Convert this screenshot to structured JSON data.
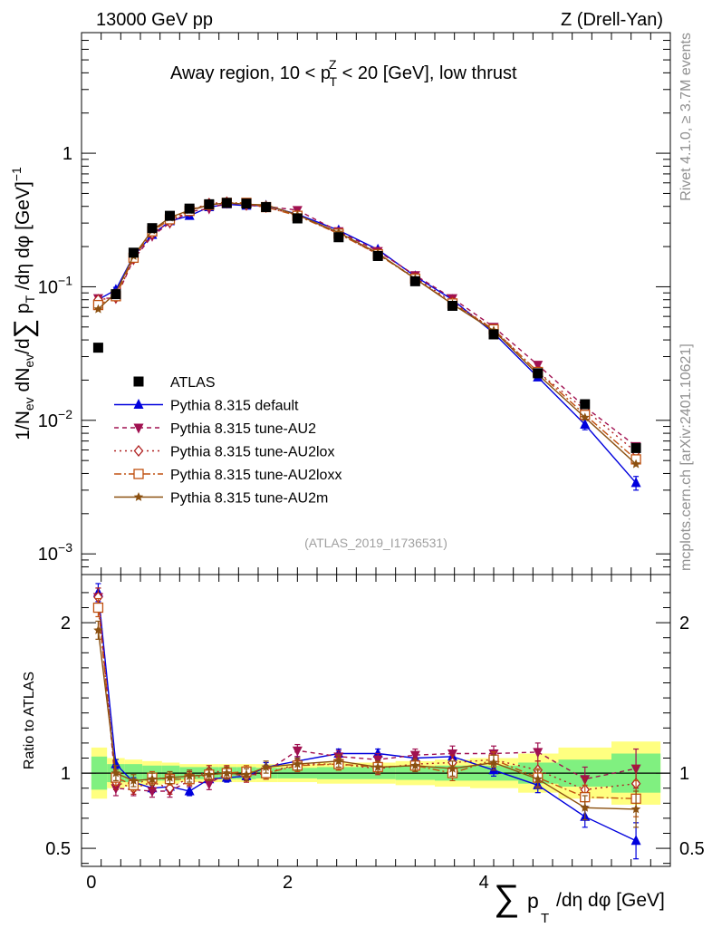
{
  "header": {
    "energy_label": "13000 GeV pp",
    "process_label": "Z (Drell-Yan)",
    "region_label_pre": "Away region, 10 < p",
    "region_label_sup": "Z",
    "region_label_sub": "T",
    "region_label_post": " < 20 [GeV], low thrust"
  },
  "side": {
    "rivet_label": "Rivet 4.1.0, ≥ 3.7M events",
    "mcplots_label": "mcplots.cern.ch [arXiv:2401.10621]"
  },
  "analysis_id": "(ATLAS_2019_I1736531)",
  "axes": {
    "ylabel_main": "1/N_ev dN_ev/d∑ p_T /dη dφ [GeV]^-1",
    "ylabel_ratio": "Ratio to ATLAS",
    "xlabel": "∑ p_T /dη dφ [GeV]",
    "xlabel_sum": "∑",
    "xlabel_p": "p",
    "xlabel_sub": "T",
    "xlabel_post": "/dη dφ [GeV]",
    "main_tick_labels": [
      {
        "label": "1",
        "exp": "",
        "value": 1
      },
      {
        "label": "10",
        "exp": "−1",
        "value": 0.1
      },
      {
        "label": "10",
        "exp": "−2",
        "value": 0.01
      },
      {
        "label": "10",
        "exp": "−3",
        "value": 0.001
      }
    ],
    "ratio_tick_labels": [
      {
        "label": "2",
        "value": 2
      },
      {
        "label": "1",
        "value": 1
      },
      {
        "label": "0.5",
        "value": 0.5
      }
    ],
    "x_tick_labels": [
      {
        "label": "0",
        "value": 0
      },
      {
        "label": "2",
        "value": 2
      },
      {
        "label": "4",
        "value": 4
      }
    ]
  },
  "legend": [
    {
      "label": "ATLAS",
      "color": "#000000",
      "marker": "square",
      "dash": ""
    },
    {
      "label": "Pythia 8.315 default",
      "color": "#0000dd",
      "marker": "triangle-up",
      "dash": ""
    },
    {
      "label": "Pythia 8.315 tune-AU2",
      "color": "#a01050",
      "marker": "triangle-down",
      "dash": "5,4"
    },
    {
      "label": "Pythia 8.315 tune-AU2lox",
      "color": "#b02020",
      "marker": "diamond-open",
      "dash": "2,4"
    },
    {
      "label": "Pythia 8.315 tune-AU2loxx",
      "color": "#c05010",
      "marker": "square-open",
      "dash": "8,3,2,3"
    },
    {
      "label": "Pythia 8.315 tune-AU2m",
      "color": "#8b5010",
      "marker": "star",
      "dash": ""
    }
  ],
  "chart_data": [
    {
      "type": "line",
      "title": "Away region, 10 < pT^Z < 20 [GeV], low thrust",
      "xlabel": "∑ pT /dη dφ [GeV]",
      "ylabel": "1/Nev dNev/d∑ pT /dη dφ [GeV]^-1",
      "yscale": "log",
      "xlim": [
        -0.1,
        5.9
      ],
      "ylim": [
        0.0007,
        8.0
      ],
      "x": [
        0.07,
        0.25,
        0.43,
        0.62,
        0.8,
        1.0,
        1.2,
        1.38,
        1.58,
        1.78,
        2.1,
        2.52,
        2.92,
        3.3,
        3.68,
        4.1,
        4.55,
        5.03,
        5.55
      ],
      "series": [
        {
          "name": "ATLAS",
          "values": [
            0.035,
            0.088,
            0.18,
            0.275,
            0.34,
            0.385,
            0.415,
            0.425,
            0.42,
            0.395,
            0.325,
            0.235,
            0.17,
            0.11,
            0.072,
            0.044,
            0.0225,
            0.0132,
            0.0062
          ]
        },
        {
          "name": "Pythia 8.315 default",
          "values": [
            0.08,
            0.095,
            0.17,
            0.245,
            0.31,
            0.34,
            0.395,
            0.415,
            0.405,
            0.405,
            0.35,
            0.265,
            0.19,
            0.12,
            0.08,
            0.045,
            0.021,
            0.0093,
            0.0034
          ],
          "errors": [
            0.004,
            0.004,
            0.005,
            0.006,
            0.007,
            0.007,
            0.008,
            0.008,
            0.008,
            0.008,
            0.007,
            0.005,
            0.004,
            0.003,
            0.002,
            0.0015,
            0.001,
            0.0008,
            0.0004
          ]
        },
        {
          "name": "Pythia 8.315 tune-AU2",
          "values": [
            0.082,
            0.082,
            0.16,
            0.24,
            0.3,
            0.365,
            0.385,
            0.425,
            0.41,
            0.4,
            0.375,
            0.26,
            0.185,
            0.122,
            0.082,
            0.05,
            0.026,
            0.0126,
            0.0064
          ]
        },
        {
          "name": "Pythia 8.315 tune-AU2lox",
          "values": [
            0.08,
            0.083,
            0.162,
            0.25,
            0.305,
            0.375,
            0.42,
            0.43,
            0.41,
            0.395,
            0.345,
            0.25,
            0.175,
            0.117,
            0.077,
            0.048,
            0.023,
            0.012,
            0.0058
          ]
        },
        {
          "name": "Pythia 8.315 tune-AU2loxx",
          "values": [
            0.073,
            0.085,
            0.165,
            0.26,
            0.32,
            0.37,
            0.41,
            0.425,
            0.425,
            0.395,
            0.34,
            0.25,
            0.175,
            0.115,
            0.075,
            0.048,
            0.023,
            0.011,
            0.0051
          ]
        },
        {
          "name": "Pythia 8.315 tune-AU2m",
          "values": [
            0.068,
            0.09,
            0.17,
            0.265,
            0.33,
            0.375,
            0.41,
            0.425,
            0.415,
            0.41,
            0.345,
            0.255,
            0.178,
            0.115,
            0.074,
            0.047,
            0.022,
            0.0105,
            0.0047
          ]
        }
      ]
    },
    {
      "type": "line",
      "title": "Ratio to ATLAS",
      "xlabel": "∑ pT /dη dφ [GeV]",
      "ylabel": "Ratio to ATLAS",
      "xlim": [
        -0.1,
        5.9
      ],
      "ylim": [
        0.38,
        2.32
      ],
      "x": [
        0.07,
        0.25,
        0.43,
        0.62,
        0.8,
        1.0,
        1.2,
        1.38,
        1.58,
        1.78,
        2.1,
        2.52,
        2.92,
        3.3,
        3.68,
        4.1,
        4.55,
        5.03,
        5.55
      ],
      "bands": {
        "bin_edges": [
          0.0,
          0.16,
          0.34,
          0.52,
          0.72,
          0.9,
          1.1,
          1.3,
          1.48,
          1.68,
          1.9,
          2.3,
          2.72,
          3.1,
          3.5,
          3.86,
          4.35,
          4.76,
          5.3,
          5.8
        ],
        "inner": [
          0.11,
          0.06,
          0.06,
          0.05,
          0.05,
          0.04,
          0.04,
          0.04,
          0.04,
          0.035,
          0.035,
          0.04,
          0.04,
          0.045,
          0.05,
          0.05,
          0.07,
          0.09,
          0.13
        ],
        "outer": [
          0.17,
          0.1,
          0.09,
          0.08,
          0.07,
          0.06,
          0.06,
          0.06,
          0.06,
          0.06,
          0.06,
          0.07,
          0.07,
          0.08,
          0.09,
          0.1,
          0.13,
          0.17,
          0.21
        ]
      },
      "series": [
        {
          "name": "Pythia 8.315 default",
          "values": [
            2.2,
            1.06,
            0.94,
            0.9,
            0.91,
            0.88,
            0.96,
            0.97,
            0.98,
            1.04,
            1.08,
            1.13,
            1.13,
            1.1,
            1.11,
            1.02,
            0.92,
            0.71,
            0.55
          ],
          "errors": [
            0.06,
            0.03,
            0.03,
            0.03,
            0.03,
            0.03,
            0.03,
            0.03,
            0.03,
            0.03,
            0.03,
            0.03,
            0.03,
            0.03,
            0.04,
            0.04,
            0.05,
            0.07,
            0.12
          ]
        },
        {
          "name": "Pythia 8.315 tune-AU2",
          "values": [
            2.17,
            0.9,
            0.89,
            0.88,
            0.88,
            0.95,
            0.93,
            1.0,
            0.98,
            1.01,
            1.15,
            1.11,
            1.09,
            1.12,
            1.13,
            1.13,
            1.14,
            0.96,
            1.03
          ],
          "errors": [
            0.06,
            0.05,
            0.04,
            0.04,
            0.04,
            0.04,
            0.04,
            0.04,
            0.04,
            0.04,
            0.04,
            0.04,
            0.04,
            0.04,
            0.05,
            0.05,
            0.06,
            0.08,
            0.13
          ]
        },
        {
          "name": "Pythia 8.315 tune-AU2lox",
          "values": [
            2.17,
            0.94,
            0.9,
            0.94,
            0.9,
            0.97,
            1.01,
            1.01,
            0.98,
            1.0,
            1.06,
            1.06,
            1.03,
            1.06,
            1.07,
            1.09,
            1.02,
            0.89,
            0.93
          ],
          "errors": [
            0.06,
            0.05,
            0.04,
            0.04,
            0.04,
            0.04,
            0.04,
            0.04,
            0.04,
            0.04,
            0.04,
            0.04,
            0.04,
            0.04,
            0.05,
            0.05,
            0.06,
            0.08,
            0.12
          ]
        },
        {
          "name": "Pythia 8.315 tune-AU2loxx",
          "values": [
            2.1,
            0.97,
            0.92,
            0.97,
            0.96,
            0.96,
            0.99,
            1.0,
            1.01,
            1.0,
            1.05,
            1.06,
            1.04,
            1.05,
            1.0,
            1.09,
            0.97,
            0.84,
            0.83
          ],
          "errors": [
            0.06,
            0.05,
            0.04,
            0.04,
            0.04,
            0.04,
            0.04,
            0.04,
            0.04,
            0.04,
            0.04,
            0.04,
            0.04,
            0.04,
            0.05,
            0.05,
            0.06,
            0.08,
            0.12
          ]
        },
        {
          "name": "Pythia 8.315 tune-AU2m",
          "values": [
            1.95,
            1.0,
            0.95,
            0.96,
            0.97,
            0.98,
            0.99,
            1.0,
            0.99,
            1.04,
            1.06,
            1.08,
            1.04,
            1.05,
            1.03,
            1.07,
            0.96,
            0.77,
            0.76
          ],
          "errors": [
            0.06,
            0.05,
            0.04,
            0.04,
            0.04,
            0.04,
            0.04,
            0.04,
            0.04,
            0.04,
            0.04,
            0.04,
            0.04,
            0.04,
            0.05,
            0.05,
            0.06,
            0.08,
            0.12
          ]
        }
      ]
    }
  ]
}
